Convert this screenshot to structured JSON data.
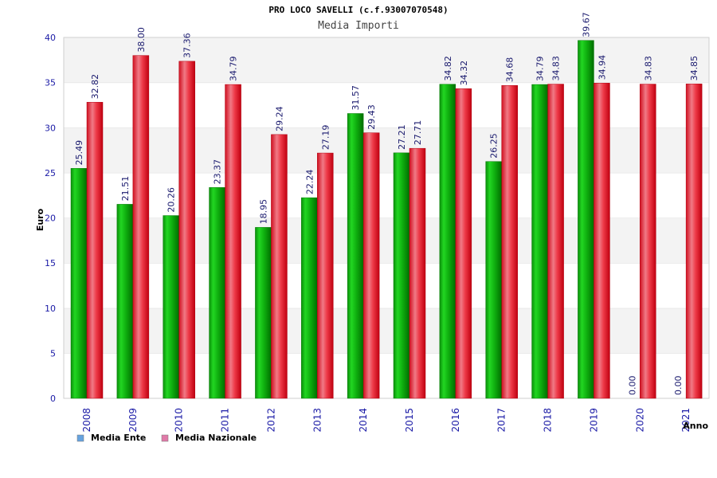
{
  "chart_data": {
    "type": "bar",
    "title": "PRO LOCO SAVELLI (c.f.93007070548)",
    "subtitle": "Media Importi",
    "xlabel": "Anno",
    "ylabel": "Euro",
    "ylim": [
      0,
      40
    ],
    "yticks": [
      "0",
      "5",
      "10",
      "15",
      "20",
      "25",
      "30",
      "35",
      "40"
    ],
    "grid": "horizontal bands",
    "legend_position": "bottom-left",
    "categories": [
      "2008",
      "2009",
      "2010",
      "2011",
      "2012",
      "2013",
      "2014",
      "2015",
      "2016",
      "2017",
      "2018",
      "2019",
      "2020",
      "2021"
    ],
    "series": [
      {
        "name": "Media Ente",
        "legend_color": "#66a3e0",
        "bar_color": "#19c419",
        "values": [
          25.49,
          21.51,
          20.26,
          23.37,
          18.95,
          22.24,
          31.57,
          27.21,
          34.82,
          26.25,
          34.79,
          39.67,
          0.0,
          0.0
        ],
        "labels": [
          "25.49",
          "21.51",
          "20.26",
          "23.37",
          "18.95",
          "22.24",
          "31.57",
          "27.21",
          "34.82",
          "26.25",
          "34.79",
          "39.67",
          "0.00",
          "0.00"
        ]
      },
      {
        "name": "Media Nazionale",
        "legend_color": "#e07aa8",
        "bar_color": "#e81a2a",
        "values": [
          32.82,
          38.0,
          37.36,
          34.79,
          29.24,
          27.19,
          29.43,
          27.71,
          34.32,
          34.68,
          34.83,
          34.94,
          34.83,
          34.85
        ],
        "labels": [
          "32.82",
          "38.00",
          "37.36",
          "34.79",
          "29.24",
          "27.19",
          "29.43",
          "27.71",
          "34.32",
          "34.68",
          "34.83",
          "34.94",
          "34.83",
          "34.85"
        ]
      }
    ]
  }
}
